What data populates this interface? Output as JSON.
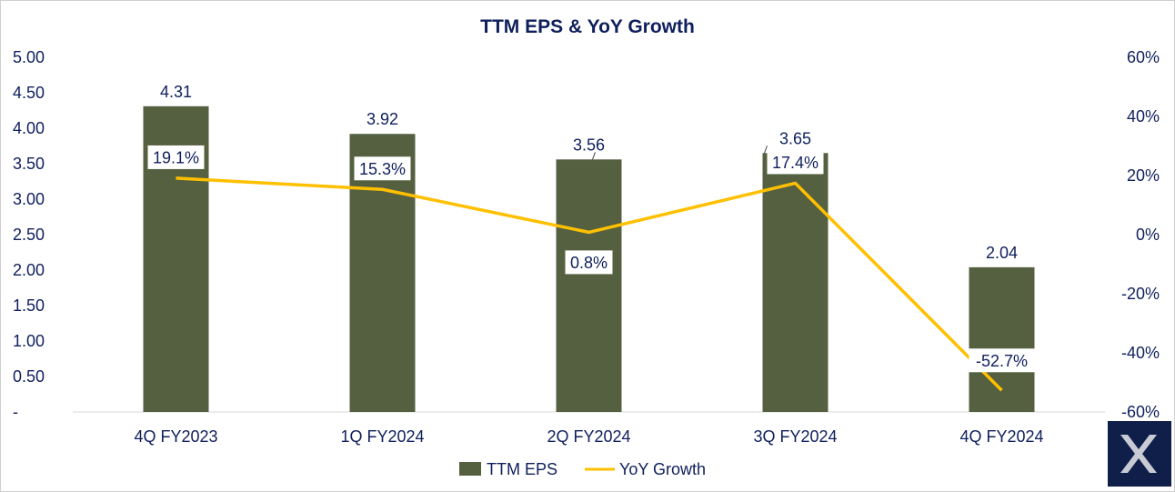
{
  "chart_data": {
    "type": "bar+line",
    "title": "TTM EPS & YoY Growth",
    "categories": [
      "4Q FY2023",
      "1Q FY2024",
      "2Q FY2024",
      "3Q FY2024",
      "4Q FY2024"
    ],
    "series": [
      {
        "name": "TTM EPS",
        "type": "bar",
        "axis": "left",
        "values": [
          4.31,
          3.92,
          3.56,
          3.65,
          2.04
        ],
        "labels": [
          "4.31",
          "3.92",
          "3.56",
          "3.65",
          "2.04"
        ],
        "color": "#556040"
      },
      {
        "name": "YoY Growth",
        "type": "line",
        "axis": "right",
        "values": [
          19.1,
          15.3,
          0.8,
          17.4,
          -52.7
        ],
        "labels": [
          "19.1%",
          "15.3%",
          "0.8%",
          "17.4%",
          "-52.7%"
        ],
        "color": "#ffc000"
      }
    ],
    "y_left": {
      "range": [
        0,
        5
      ],
      "step": 0.5,
      "tick_labels": [
        "-",
        "0.50",
        "1.00",
        "1.50",
        "2.00",
        "2.50",
        "3.00",
        "3.50",
        "4.00",
        "4.50",
        "5.00"
      ]
    },
    "y_right": {
      "range": [
        -60,
        60
      ],
      "step": 20,
      "tick_labels": [
        "-60%",
        "-40%",
        "-20%",
        "0%",
        "20%",
        "40%",
        "60%"
      ]
    },
    "legend": {
      "position": "bottom",
      "entries": [
        "TTM EPS",
        "YoY Growth"
      ]
    },
    "grid": false
  },
  "logo": {
    "label": "logo",
    "background": "#0f1f4a"
  },
  "colors": {
    "text": "#0f1f5c",
    "bar": "#556040",
    "line": "#ffc000"
  }
}
